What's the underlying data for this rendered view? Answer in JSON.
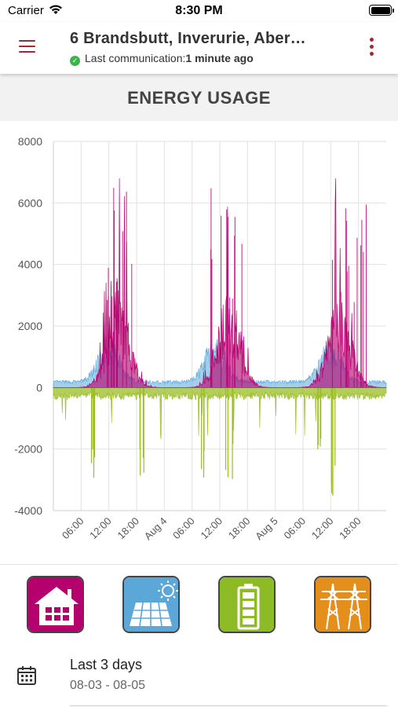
{
  "status_bar": {
    "carrier": "Carrier",
    "time": "8:30 PM"
  },
  "header": {
    "title": "6 Brandsbutt, Inverurie, Aber…",
    "subtitle_label": "Last communication:",
    "subtitle_value": "1 minute ago",
    "menu_icon": "hamburger-menu-icon",
    "more_icon": "more-vertical-icon"
  },
  "section": {
    "title": "ENERGY USAGE"
  },
  "chart_data": {
    "type": "area",
    "ylim": [
      -4000,
      8000
    ],
    "yticks": [
      8000,
      6000,
      4000,
      2000,
      0,
      -2000,
      -4000
    ],
    "xlim_hours": [
      0,
      72
    ],
    "xticks": [
      {
        "hour": 6,
        "label": "06:00"
      },
      {
        "hour": 12,
        "label": "12:00"
      },
      {
        "hour": 18,
        "label": "18:00"
      },
      {
        "hour": 24,
        "label": "Aug 4"
      },
      {
        "hour": 30,
        "label": "06:00"
      },
      {
        "hour": 36,
        "label": "12:00"
      },
      {
        "hour": 42,
        "label": "18:00"
      },
      {
        "hour": 48,
        "label": "Aug 5"
      },
      {
        "hour": 54,
        "label": "06:00"
      },
      {
        "hour": 60,
        "label": "12:00"
      },
      {
        "hour": 66,
        "label": "18:00"
      }
    ],
    "grid": true,
    "series": [
      {
        "key": "home",
        "color": "#b5006e",
        "peaks": [
          {
            "hour": 12,
            "value": 4500
          },
          {
            "hour": 15,
            "value": 7000
          },
          {
            "hour": 36,
            "value": 6500
          },
          {
            "hour": 39,
            "value": 6000
          },
          {
            "hour": 62,
            "value": 6300
          },
          {
            "hour": 67,
            "value": 6000
          }
        ]
      },
      {
        "key": "solar",
        "color": "#5aa7d8",
        "peaks": [
          {
            "hour": 12,
            "value": 2800
          },
          {
            "hour": 35,
            "value": 2700
          },
          {
            "hour": 60,
            "value": 2600
          }
        ]
      },
      {
        "key": "battery",
        "color": "#9bbd24",
        "troughs": [
          {
            "hour": 9,
            "value": -3000
          },
          {
            "hour": 19,
            "value": -2900
          },
          {
            "hour": 32,
            "value": -3000
          },
          {
            "hour": 38,
            "value": -3000
          },
          {
            "hour": 57,
            "value": -2700
          },
          {
            "hour": 61,
            "value": -3600
          }
        ]
      }
    ]
  },
  "categories": [
    {
      "key": "home",
      "bg": "#b5006e",
      "icon": "house-icon"
    },
    {
      "key": "solar",
      "bg": "#5aa7d8",
      "icon": "solar-panel-icon"
    },
    {
      "key": "battery",
      "bg": "#8dbb25",
      "icon": "battery-icon"
    },
    {
      "key": "grid",
      "bg": "#e48e1c",
      "icon": "power-pylon-icon"
    }
  ],
  "date_filter": {
    "label": "Last 3 days",
    "range": "08-03 - 08-05",
    "icon": "calendar-icon"
  }
}
